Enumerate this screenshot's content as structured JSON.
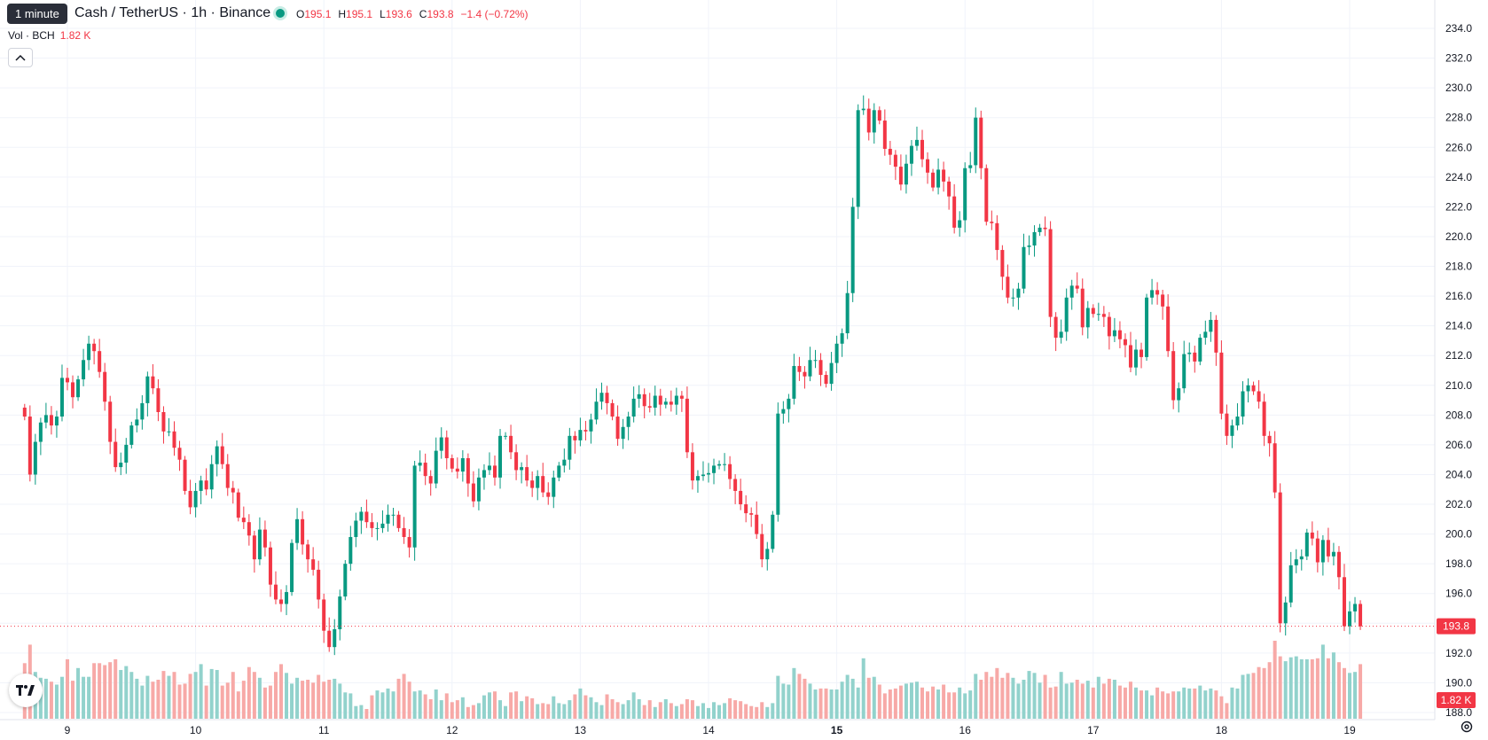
{
  "header": {
    "tooltip": "1 minute",
    "symbol_title": "Cash / TetherUS · 1h · Binance",
    "ohlc": [
      {
        "k": "O",
        "v": "195.1"
      },
      {
        "k": "H",
        "v": "195.1"
      },
      {
        "k": "L",
        "v": "193.6"
      },
      {
        "k": "C",
        "v": "193.8"
      },
      {
        "k": "",
        "v": "−1.4 (−0.72%)"
      }
    ],
    "vol_label": "Vol · BCH",
    "vol_value": "1.82 K",
    "collapse_icon": "chevron-up-icon"
  },
  "colors": {
    "up": "#089981",
    "down": "#f23645",
    "up_vol": "#92d2cc",
    "down_vol": "#f7a9a7",
    "grid": "#f0f3fa",
    "axis_text": "#131722"
  },
  "chart_data": {
    "type": "candlestick",
    "title": "",
    "ylim": [
      187.6,
      235.2
    ],
    "yticks": [
      "234.0",
      "232.0",
      "230.0",
      "228.0",
      "226.0",
      "224.0",
      "222.0",
      "220.0",
      "218.0",
      "216.0",
      "214.0",
      "212.0",
      "210.0",
      "208.0",
      "206.0",
      "204.0",
      "202.0",
      "200.0",
      "198.0",
      "196.0",
      "194.0",
      "192.0",
      "190.0",
      "188.0"
    ],
    "xticks": [
      {
        "label": "9",
        "index": 8
      },
      {
        "label": "10",
        "index": 32
      },
      {
        "label": "11",
        "index": 56
      },
      {
        "label": "12",
        "index": 80
      },
      {
        "label": "13",
        "index": 104
      },
      {
        "label": "14",
        "index": 128
      },
      {
        "label": "15",
        "index": 152
      },
      {
        "label": "16",
        "index": 176
      },
      {
        "label": "17",
        "index": 200
      },
      {
        "label": "18",
        "index": 224
      },
      {
        "label": "19",
        "index": 248
      }
    ],
    "last_price": "193.8",
    "last_price_value": 193.8,
    "last_volume": "1.82 K",
    "series_close": [
      207.9,
      204.0,
      206.2,
      207.5,
      208.0,
      207.3,
      207.9,
      210.5,
      210.2,
      209.2,
      210.4,
      211.7,
      212.8,
      212.3,
      210.9,
      208.9,
      206.2,
      204.5,
      204.8,
      206.0,
      207.3,
      207.7,
      208.8,
      210.6,
      209.8,
      208.2,
      206.9,
      206.9,
      205.8,
      205.0,
      202.9,
      201.8,
      202.9,
      203.6,
      203.0,
      204.7,
      205.9,
      204.7,
      203.1,
      202.8,
      201.1,
      200.8,
      199.9,
      198.3,
      200.3,
      199.1,
      196.6,
      195.6,
      195.3,
      196.1,
      199.4,
      201.0,
      199.3,
      198.3,
      197.6,
      195.6,
      193.5,
      192.4,
      193.6,
      195.8,
      198.0,
      199.8,
      200.9,
      201.5,
      200.8,
      200.4,
      200.4,
      200.7,
      201.3,
      201.3,
      200.4,
      199.8,
      199.1,
      204.6,
      204.8,
      203.9,
      203.4,
      205.6,
      206.5,
      205.1,
      204.4,
      204.2,
      205.1,
      203.4,
      202.2,
      203.8,
      204.3,
      204.6,
      203.8,
      206.6,
      206.6,
      205.5,
      204.3,
      204.5,
      203.6,
      203.1,
      203.9,
      202.8,
      202.5,
      203.8,
      204.6,
      205.0,
      206.6,
      206.3,
      207.0,
      206.9,
      207.7,
      208.9,
      209.5,
      208.8,
      207.9,
      206.4,
      207.2,
      207.9,
      209.1,
      209.4,
      208.6,
      208.5,
      209.3,
      208.7,
      208.9,
      208.7,
      209.3,
      209.1,
      205.5,
      203.6,
      203.9,
      204.0,
      204.1,
      204.6,
      204.7,
      204.7,
      203.7,
      202.9,
      202.0,
      201.4,
      201.3,
      200.0,
      198.3,
      199.0,
      201.3,
      208.1,
      208.4,
      209.1,
      211.3,
      210.9,
      210.6,
      211.7,
      211.7,
      210.7,
      210.1,
      211.5,
      212.8,
      213.5,
      216.2,
      222.0,
      228.5,
      228.6,
      227.0,
      228.5,
      227.8,
      225.9,
      225.5,
      224.7,
      223.5,
      224.9,
      226.1,
      226.5,
      225.2,
      224.3,
      223.3,
      224.5,
      223.7,
      222.7,
      220.6,
      221.1,
      224.6,
      224.8,
      228.0,
      224.6,
      221.0,
      220.9,
      219.1,
      217.3,
      215.9,
      215.9,
      216.5,
      219.3,
      219.4,
      220.3,
      220.6,
      220.5,
      214.6,
      213.2,
      213.6,
      215.9,
      216.7,
      216.5,
      213.9,
      215.2,
      214.8,
      214.8,
      214.6,
      213.3,
      213.7,
      213.1,
      212.7,
      211.2,
      212.4,
      211.9,
      215.9,
      216.4,
      216.1,
      215.3,
      212.3,
      209.0,
      209.8,
      212.1,
      212.2,
      211.6,
      213.2,
      213.6,
      214.4,
      212.2,
      208.1,
      206.6,
      207.3,
      207.9,
      209.6,
      210.0,
      209.6,
      208.9,
      206.6,
      206.1,
      202.8,
      194.0,
      195.4,
      197.9,
      198.3,
      198.5,
      200.1,
      199.7,
      198.1,
      199.6,
      198.5,
      198.8,
      197.1,
      193.8,
      194.8,
      195.3,
      193.8
    ],
    "series_volume_relative": [
      0.57,
      0.76,
      0.48,
      0.42,
      0.41,
      0.38,
      0.35,
      0.43,
      0.61,
      0.39,
      0.52,
      0.43,
      0.43,
      0.57,
      0.57,
      0.55,
      0.58,
      0.61,
      0.5,
      0.54,
      0.48,
      0.41,
      0.34,
      0.44,
      0.38,
      0.4,
      0.49,
      0.44,
      0.48,
      0.35,
      0.36,
      0.46,
      0.48,
      0.56,
      0.34,
      0.51,
      0.5,
      0.34,
      0.37,
      0.48,
      0.28,
      0.39,
      0.53,
      0.48,
      0.42,
      0.32,
      0.34,
      0.48,
      0.56,
      0.47,
      0.36,
      0.42,
      0.39,
      0.4,
      0.37,
      0.45,
      0.38,
      0.4,
      0.41,
      0.36,
      0.27,
      0.26,
      0.13,
      0.14,
      0.1,
      0.24,
      0.29,
      0.27,
      0.31,
      0.28,
      0.41,
      0.46,
      0.38,
      0.28,
      0.29,
      0.25,
      0.2,
      0.3,
      0.19,
      0.26,
      0.17,
      0.19,
      0.22,
      0.12,
      0.14,
      0.16,
      0.24,
      0.27,
      0.28,
      0.19,
      0.13,
      0.27,
      0.28,
      0.18,
      0.23,
      0.21,
      0.15,
      0.16,
      0.15,
      0.23,
      0.16,
      0.15,
      0.19,
      0.25,
      0.31,
      0.24,
      0.22,
      0.17,
      0.14,
      0.25,
      0.2,
      0.17,
      0.15,
      0.19,
      0.27,
      0.2,
      0.14,
      0.19,
      0.12,
      0.17,
      0.2,
      0.16,
      0.13,
      0.15,
      0.2,
      0.19,
      0.13,
      0.16,
      0.11,
      0.17,
      0.14,
      0.16,
      0.21,
      0.19,
      0.18,
      0.15,
      0.13,
      0.12,
      0.17,
      0.12,
      0.16,
      0.44,
      0.36,
      0.35,
      0.52,
      0.46,
      0.41,
      0.36,
      0.3,
      0.31,
      0.31,
      0.3,
      0.3,
      0.38,
      0.45,
      0.41,
      0.32,
      0.62,
      0.42,
      0.43,
      0.35,
      0.26,
      0.3,
      0.31,
      0.34,
      0.36,
      0.37,
      0.38,
      0.32,
      0.28,
      0.33,
      0.3,
      0.35,
      0.27,
      0.27,
      0.32,
      0.26,
      0.29,
      0.46,
      0.4,
      0.48,
      0.43,
      0.52,
      0.42,
      0.47,
      0.42,
      0.36,
      0.4,
      0.49,
      0.47,
      0.37,
      0.45,
      0.32,
      0.33,
      0.48,
      0.36,
      0.37,
      0.4,
      0.36,
      0.39,
      0.32,
      0.43,
      0.36,
      0.41,
      0.4,
      0.34,
      0.32,
      0.38,
      0.32,
      0.29,
      0.29,
      0.24,
      0.32,
      0.28,
      0.26,
      0.28,
      0.28,
      0.32,
      0.31,
      0.31,
      0.34,
      0.29,
      0.31,
      0.29,
      0.23,
      0.16,
      0.32,
      0.31,
      0.45,
      0.46,
      0.47,
      0.53,
      0.52,
      0.58,
      0.8,
      0.64,
      0.59,
      0.63,
      0.64,
      0.61,
      0.61,
      0.61,
      0.62,
      0.76,
      0.62,
      0.68,
      0.58,
      0.52,
      0.47,
      0.48,
      0.56,
      0.52
    ]
  }
}
